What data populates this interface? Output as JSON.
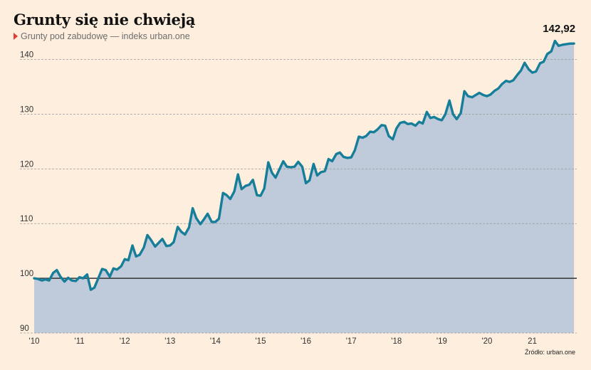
{
  "title": "Grunty się nie chwieją",
  "subtitle": "Grunty pod zabudowę — indeks urban.one",
  "source": "Źródło: urban.one",
  "colors": {
    "background": "#fdeedd",
    "line": "#177e99",
    "area": "#bfcadb",
    "grid": "#9a9a9a",
    "baseline": "#333333",
    "marker": "#e53935"
  },
  "chart_data": {
    "type": "area",
    "title": "Grunty się nie chwieją",
    "subtitle": "Grunty pod zabudowę — indeks urban.one",
    "x_start": 2010,
    "x_end": 2021.95,
    "ylim": [
      90,
      145
    ],
    "yticks": [
      90,
      100,
      110,
      120,
      130,
      140
    ],
    "yticks_labels": [
      "90",
      "100",
      "110",
      "120",
      "130",
      "140"
    ],
    "xticks": [
      2010,
      2011,
      2012,
      2013,
      2014,
      2015,
      2016,
      2017,
      2018,
      2019,
      2020,
      2021
    ],
    "xticks_labels": [
      "'10",
      "'11",
      "'12",
      "'13",
      "'14",
      "'15",
      "'16",
      "'17",
      "'18",
      "'19",
      "'20",
      "21"
    ],
    "reference_line": 100,
    "grid": "horizontal dashed",
    "end_label": "142,92",
    "series": [
      {
        "points": [
          [
            2010.0,
            100.0
          ],
          [
            2010.08,
            99.9
          ],
          [
            2010.17,
            99.6
          ],
          [
            2010.25,
            99.8
          ],
          [
            2010.33,
            99.6
          ],
          [
            2010.42,
            101.0
          ],
          [
            2010.5,
            101.5
          ],
          [
            2010.58,
            100.3
          ],
          [
            2010.67,
            99.4
          ],
          [
            2010.75,
            100.1
          ],
          [
            2010.83,
            99.6
          ],
          [
            2010.92,
            99.5
          ],
          [
            2011.0,
            100.2
          ],
          [
            2011.08,
            100.0
          ],
          [
            2011.17,
            100.7
          ],
          [
            2011.25,
            97.9
          ],
          [
            2011.33,
            98.3
          ],
          [
            2011.42,
            100.1
          ],
          [
            2011.5,
            101.7
          ],
          [
            2011.58,
            101.5
          ],
          [
            2011.67,
            100.3
          ],
          [
            2011.75,
            101.8
          ],
          [
            2011.83,
            101.6
          ],
          [
            2011.92,
            102.2
          ],
          [
            2012.0,
            103.5
          ],
          [
            2012.08,
            103.3
          ],
          [
            2012.17,
            106.0
          ],
          [
            2012.25,
            104.0
          ],
          [
            2012.33,
            104.3
          ],
          [
            2012.42,
            105.6
          ],
          [
            2012.5,
            107.9
          ],
          [
            2012.58,
            107.0
          ],
          [
            2012.67,
            105.8
          ],
          [
            2012.75,
            106.5
          ],
          [
            2012.83,
            107.2
          ],
          [
            2012.92,
            105.9
          ],
          [
            2013.0,
            106.0
          ],
          [
            2013.08,
            106.6
          ],
          [
            2013.17,
            109.4
          ],
          [
            2013.25,
            108.5
          ],
          [
            2013.33,
            108.0
          ],
          [
            2013.42,
            109.3
          ],
          [
            2013.5,
            112.8
          ],
          [
            2013.58,
            111.0
          ],
          [
            2013.67,
            109.9
          ],
          [
            2013.75,
            110.8
          ],
          [
            2013.83,
            111.8
          ],
          [
            2013.92,
            110.3
          ],
          [
            2014.0,
            110.3
          ],
          [
            2014.08,
            110.9
          ],
          [
            2014.17,
            115.6
          ],
          [
            2014.25,
            115.2
          ],
          [
            2014.33,
            114.5
          ],
          [
            2014.42,
            115.9
          ],
          [
            2014.5,
            119.0
          ],
          [
            2014.58,
            116.3
          ],
          [
            2014.67,
            116.9
          ],
          [
            2014.75,
            117.1
          ],
          [
            2014.83,
            118.0
          ],
          [
            2014.92,
            115.2
          ],
          [
            2015.0,
            115.1
          ],
          [
            2015.08,
            116.4
          ],
          [
            2015.17,
            121.2
          ],
          [
            2015.25,
            119.3
          ],
          [
            2015.33,
            118.4
          ],
          [
            2015.42,
            120.0
          ],
          [
            2015.5,
            121.4
          ],
          [
            2015.58,
            120.4
          ],
          [
            2015.67,
            120.3
          ],
          [
            2015.75,
            120.4
          ],
          [
            2015.83,
            121.3
          ],
          [
            2015.92,
            120.4
          ],
          [
            2016.0,
            117.4
          ],
          [
            2016.08,
            117.9
          ],
          [
            2016.17,
            120.9
          ],
          [
            2016.25,
            118.8
          ],
          [
            2016.33,
            119.4
          ],
          [
            2016.42,
            119.6
          ],
          [
            2016.5,
            121.8
          ],
          [
            2016.58,
            121.4
          ],
          [
            2016.67,
            122.7
          ],
          [
            2016.75,
            123.0
          ],
          [
            2016.83,
            122.2
          ],
          [
            2016.92,
            122.0
          ],
          [
            2017.0,
            122.1
          ],
          [
            2017.08,
            123.4
          ],
          [
            2017.17,
            125.9
          ],
          [
            2017.25,
            125.7
          ],
          [
            2017.33,
            126.0
          ],
          [
            2017.42,
            126.8
          ],
          [
            2017.5,
            126.7
          ],
          [
            2017.58,
            127.2
          ],
          [
            2017.67,
            128.0
          ],
          [
            2017.75,
            127.9
          ],
          [
            2017.83,
            126.0
          ],
          [
            2017.92,
            125.4
          ],
          [
            2018.0,
            127.4
          ],
          [
            2018.08,
            128.4
          ],
          [
            2018.17,
            128.6
          ],
          [
            2018.25,
            128.2
          ],
          [
            2018.33,
            128.3
          ],
          [
            2018.42,
            127.9
          ],
          [
            2018.5,
            128.6
          ],
          [
            2018.58,
            128.3
          ],
          [
            2018.67,
            130.4
          ],
          [
            2018.75,
            129.3
          ],
          [
            2018.83,
            129.5
          ],
          [
            2018.92,
            129.1
          ],
          [
            2019.0,
            128.9
          ],
          [
            2019.08,
            130.0
          ],
          [
            2019.17,
            132.5
          ],
          [
            2019.25,
            130.0
          ],
          [
            2019.33,
            129.1
          ],
          [
            2019.42,
            130.2
          ],
          [
            2019.5,
            134.2
          ],
          [
            2019.58,
            133.3
          ],
          [
            2019.67,
            133.1
          ],
          [
            2019.75,
            133.5
          ],
          [
            2019.83,
            133.9
          ],
          [
            2019.92,
            133.5
          ],
          [
            2020.0,
            133.3
          ],
          [
            2020.08,
            133.6
          ],
          [
            2020.17,
            134.3
          ],
          [
            2020.25,
            134.7
          ],
          [
            2020.33,
            135.5
          ],
          [
            2020.42,
            136.1
          ],
          [
            2020.5,
            135.9
          ],
          [
            2020.58,
            136.2
          ],
          [
            2020.67,
            137.2
          ],
          [
            2020.75,
            138.0
          ],
          [
            2020.83,
            139.4
          ],
          [
            2020.92,
            138.2
          ],
          [
            2021.0,
            137.6
          ],
          [
            2021.08,
            137.8
          ],
          [
            2021.17,
            139.3
          ],
          [
            2021.25,
            139.6
          ],
          [
            2021.33,
            141.0
          ],
          [
            2021.42,
            141.5
          ],
          [
            2021.5,
            143.4
          ],
          [
            2021.58,
            142.5
          ],
          [
            2021.67,
            142.7
          ],
          [
            2021.75,
            142.8
          ],
          [
            2021.83,
            142.9
          ],
          [
            2021.92,
            142.92
          ]
        ]
      }
    ]
  }
}
